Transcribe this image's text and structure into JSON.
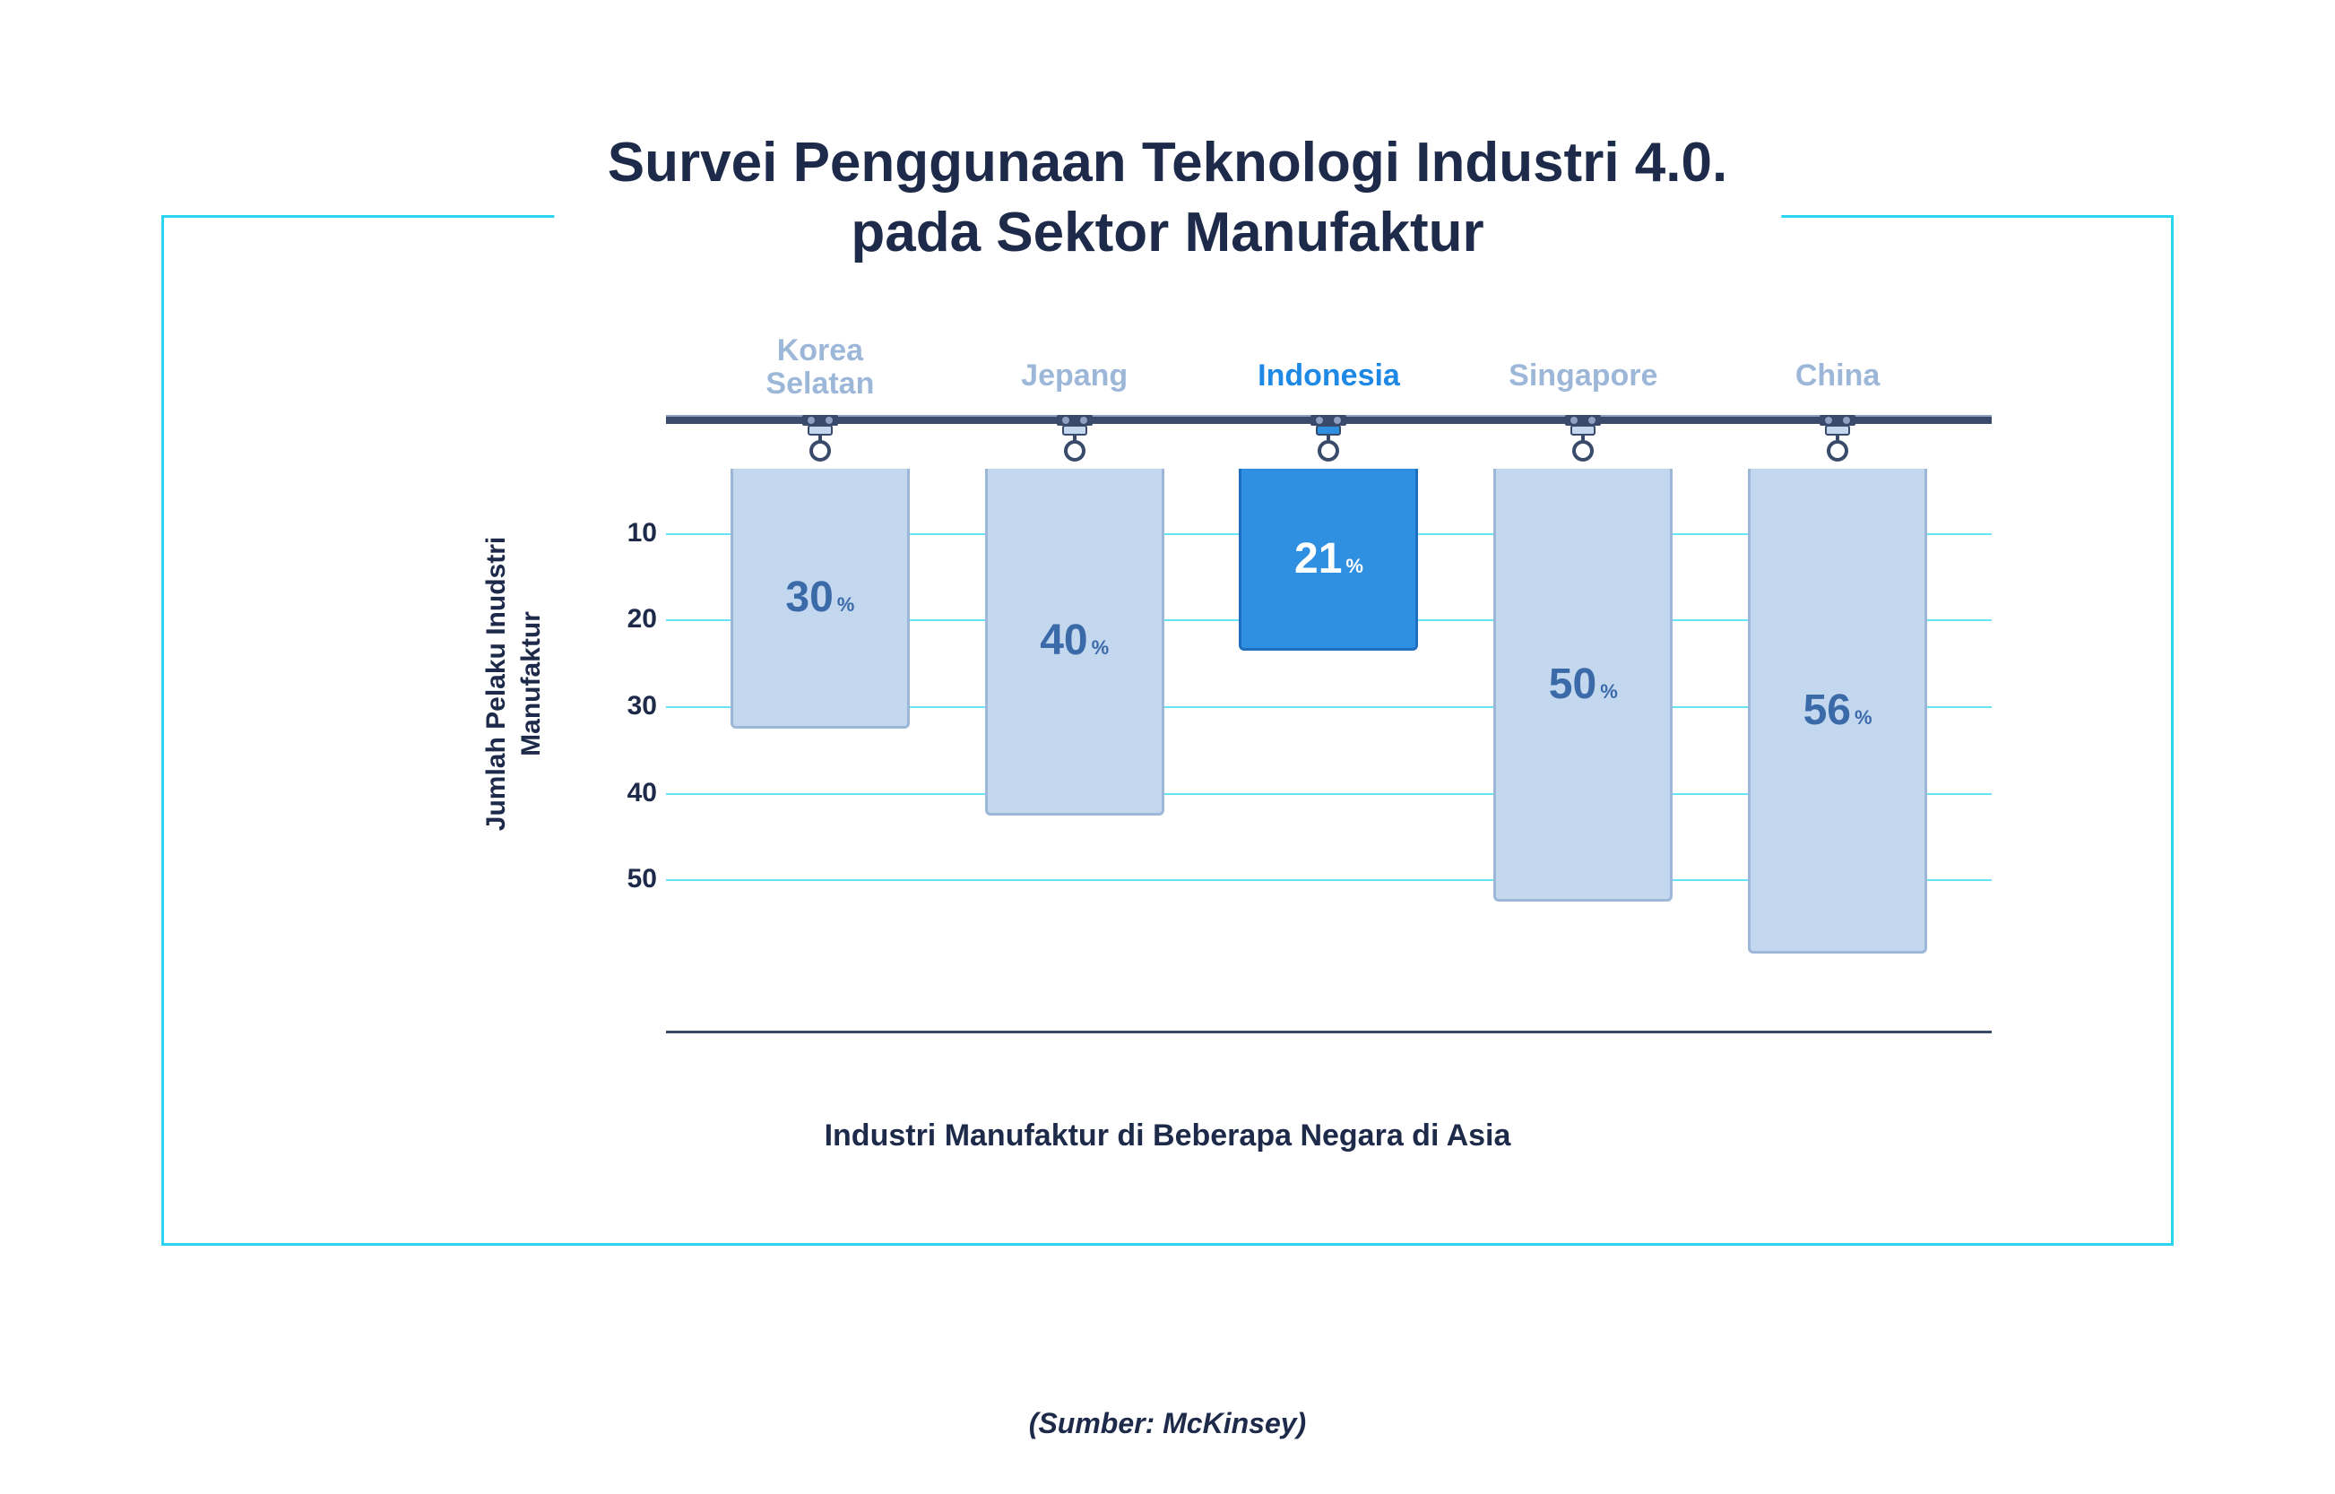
{
  "title": {
    "line1": "Survei Penggunaan Teknologi Industri 4.0.",
    "line2": "pada Sektor Manufaktur",
    "color": "#1e2a4a",
    "fontsize": 62
  },
  "frame": {
    "border_color": "#2ad5ef"
  },
  "chart": {
    "type": "bar",
    "orientation": "hanging",
    "y_label_line1": "Jumlah Pelaku Inudstri",
    "y_label_line2": "Manufaktur",
    "x_label": "Industri Manufaktur di Beberapa Negara di Asia",
    "y_ticks": [
      10,
      20,
      30,
      40,
      50
    ],
    "y_max": 60,
    "grid_color": "#2ad5ef",
    "rail_color": "#3a4a6b",
    "label_color_muted": "#9db7d9",
    "label_color_highlight": "#1e88e5",
    "bar_fill_muted": "#c3d7ef",
    "bar_stroke_muted": "#9db7d9",
    "bar_fill_highlight": "#2f8fe0",
    "bar_stroke_highlight": "#1e6fc0",
    "value_color_muted": "#3a6aa8",
    "value_color_highlight": "#ffffff",
    "categories": [
      {
        "label_line1": "Korea",
        "label_line2": "Selatan",
        "value": 30,
        "display": "30",
        "highlight": false
      },
      {
        "label_line1": "Jepang",
        "label_line2": "",
        "value": 40,
        "display": "40",
        "highlight": false
      },
      {
        "label_line1": "Indonesia",
        "label_line2": "",
        "value": 21,
        "display": "21",
        "highlight": true
      },
      {
        "label_line1": "Singapore",
        "label_line2": "",
        "value": 50,
        "display": "50",
        "highlight": false
      },
      {
        "label_line1": "China",
        "label_line2": "",
        "value": 56,
        "display": "56",
        "highlight": false
      }
    ]
  },
  "source": "(Sumber: McKinsey)"
}
